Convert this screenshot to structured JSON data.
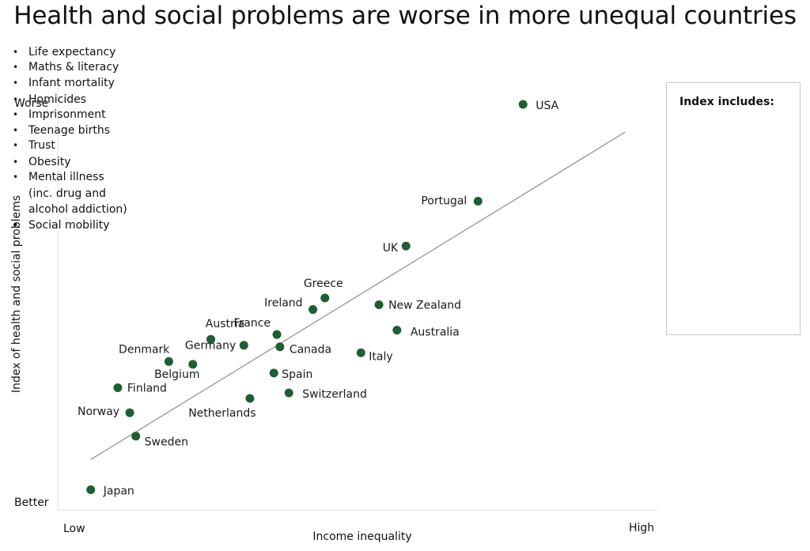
{
  "chart_data": {
    "type": "scatter",
    "title": "Health and social problems are worse in more unequal countries",
    "xlabel": "Income inequality",
    "ylabel": "Index of health and social problems",
    "x_tick_labels": {
      "low": "Low",
      "high": "High"
    },
    "y_tick_labels": {
      "low": "Better",
      "high": "Worse"
    },
    "xlim": [
      0,
      100
    ],
    "ylim": [
      0,
      100
    ],
    "grid": false,
    "point_color": "#1e5e32",
    "trend_color": "#8c8c8c",
    "trendline": {
      "x": [
        5.5,
        94.5
      ],
      "y": [
        9.7,
        92.2
      ]
    },
    "points": [
      {
        "label": "USA",
        "x": 77.5,
        "y": 99.2
      },
      {
        "label": "Portugal",
        "x": 70.0,
        "y": 74.8
      },
      {
        "label": "UK",
        "x": 58.0,
        "y": 63.5
      },
      {
        "label": "Greece",
        "x": 44.5,
        "y": 50.4
      },
      {
        "label": "Ireland",
        "x": 42.5,
        "y": 47.5
      },
      {
        "label": "New Zealand",
        "x": 53.5,
        "y": 48.7
      },
      {
        "label": "Australia",
        "x": 56.5,
        "y": 42.3
      },
      {
        "label": "France",
        "x": 36.5,
        "y": 41.2
      },
      {
        "label": "Canada",
        "x": 37.0,
        "y": 38.1
      },
      {
        "label": "Austria",
        "x": 25.5,
        "y": 40.0
      },
      {
        "label": "Germany",
        "x": 31.0,
        "y": 38.5
      },
      {
        "label": "Italy",
        "x": 50.5,
        "y": 36.6
      },
      {
        "label": "Denmark",
        "x": 18.5,
        "y": 34.4
      },
      {
        "label": "Belgium",
        "x": 22.5,
        "y": 33.7
      },
      {
        "label": "Spain",
        "x": 36.0,
        "y": 31.5
      },
      {
        "label": "Switzerland",
        "x": 38.5,
        "y": 26.5
      },
      {
        "label": "Netherlands",
        "x": 32.0,
        "y": 25.1
      },
      {
        "label": "Finland",
        "x": 10.0,
        "y": 27.8
      },
      {
        "label": "Norway",
        "x": 12.0,
        "y": 21.5
      },
      {
        "label": "Sweden",
        "x": 13.0,
        "y": 15.6
      },
      {
        "label": "Japan",
        "x": 5.5,
        "y": 2.1
      }
    ]
  },
  "legend": {
    "title": "Index includes:",
    "items": [
      "Life expectancy",
      "Maths & literacy",
      "Infant mortality",
      "Homicides",
      "Imprisonment",
      "Teenage births",
      "Trust",
      "Obesity",
      "Mental illness",
      "(inc. drug and",
      "alcohol addiction)",
      "Social mobility"
    ]
  }
}
